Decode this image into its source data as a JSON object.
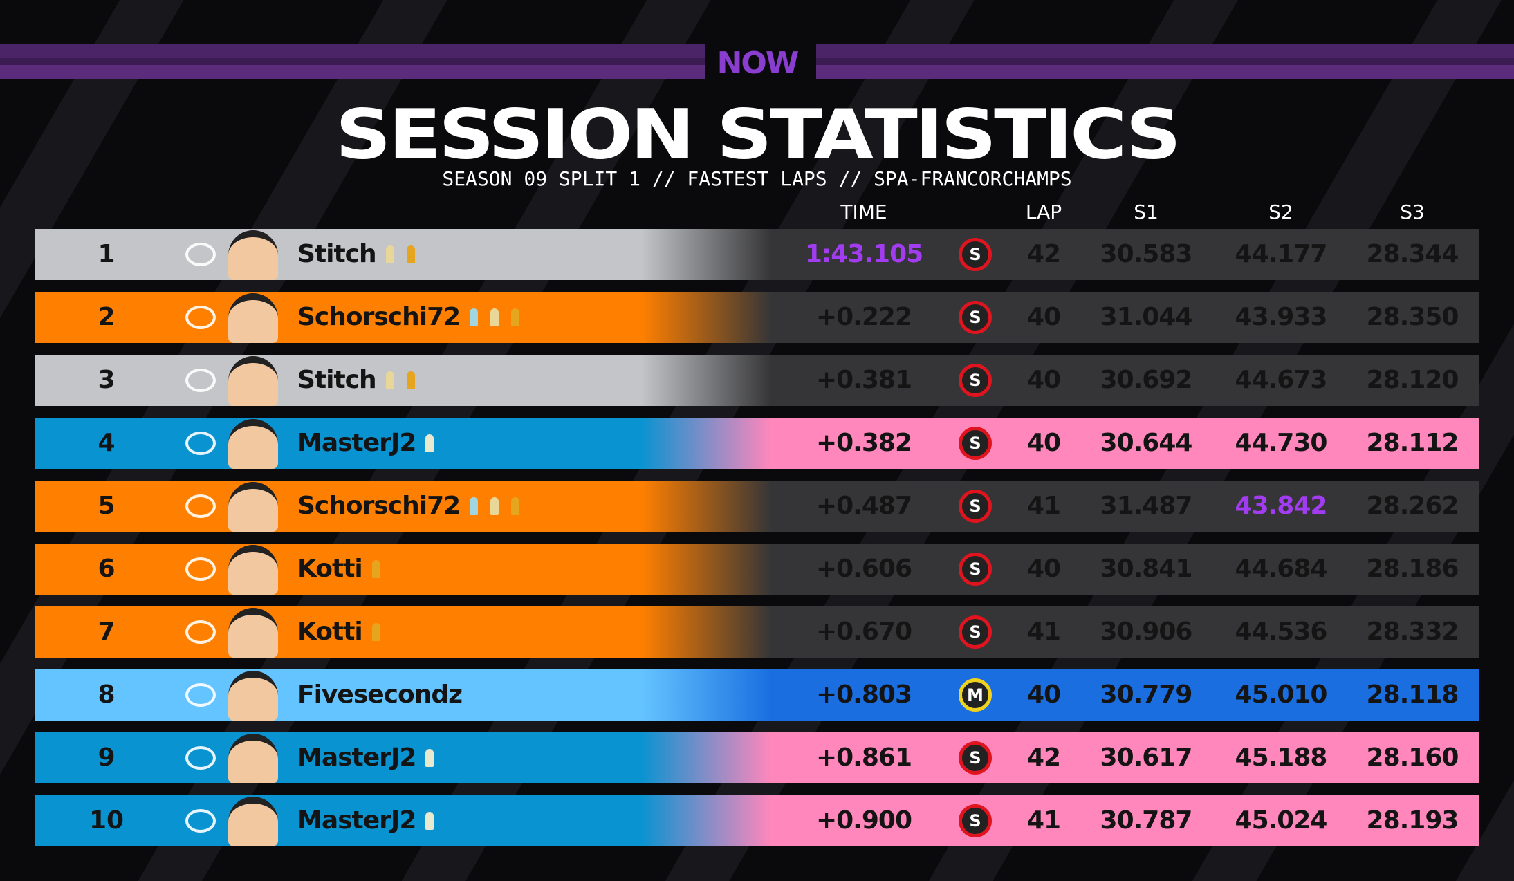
{
  "header": {
    "logo": "NOW",
    "title": "SESSION STATISTICS",
    "subtitle": "SEASON 09 SPLIT 1 // FASTEST LAPS // SPA-FRANCORCHAMPS"
  },
  "table": {
    "columns": [
      "TIME",
      "LAP",
      "S1",
      "S2",
      "S3"
    ],
    "highlight_color": "#a23cf0",
    "rows": [
      {
        "pos": "1",
        "driver": "Stitch",
        "time": "1:43.105",
        "tyre": "S",
        "lap": "42",
        "s1": "30.583",
        "s2": "44.177",
        "s3": "28.344",
        "colors": [
          "#c3c5c8",
          "#353537"
        ],
        "tyre_color": "#e0141e",
        "trophies": [
          "#e9d79a",
          "#e6a51e"
        ],
        "highlight": "time"
      },
      {
        "pos": "2",
        "driver": "Schorschi72",
        "time": "+0.222",
        "tyre": "S",
        "lap": "40",
        "s1": "31.044",
        "s2": "43.933",
        "s3": "28.350",
        "colors": [
          "#ff8000",
          "#353537"
        ],
        "tyre_color": "#e0141e",
        "trophies": [
          "#9fd6e0",
          "#e9d79a",
          "#e6a51e"
        ]
      },
      {
        "pos": "3",
        "driver": "Stitch",
        "time": "+0.381",
        "tyre": "S",
        "lap": "40",
        "s1": "30.692",
        "s2": "44.673",
        "s3": "28.120",
        "colors": [
          "#c3c5c8",
          "#353537"
        ],
        "tyre_color": "#e0141e",
        "trophies": [
          "#e9d79a",
          "#e6a51e"
        ]
      },
      {
        "pos": "4",
        "driver": "MasterJ2",
        "time": "+0.382",
        "tyre": "S",
        "lap": "40",
        "s1": "30.644",
        "s2": "44.730",
        "s3": "28.112",
        "colors": [
          "#0a93d1",
          "#ff87bc"
        ],
        "tyre_color": "#e0141e",
        "trophies": [
          "#e9e9d0"
        ]
      },
      {
        "pos": "5",
        "driver": "Schorschi72",
        "time": "+0.487",
        "tyre": "S",
        "lap": "41",
        "s1": "31.487",
        "s2": "43.842",
        "s3": "28.262",
        "colors": [
          "#ff8000",
          "#353537"
        ],
        "tyre_color": "#e0141e",
        "trophies": [
          "#9fd6e0",
          "#e9d79a",
          "#e6a51e"
        ],
        "highlight": "s2"
      },
      {
        "pos": "6",
        "driver": "Kotti",
        "time": "+0.606",
        "tyre": "S",
        "lap": "40",
        "s1": "30.841",
        "s2": "44.684",
        "s3": "28.186",
        "colors": [
          "#ff8000",
          "#353537"
        ],
        "tyre_color": "#e0141e",
        "trophies": [
          "#e6a51e"
        ]
      },
      {
        "pos": "7",
        "driver": "Kotti",
        "time": "+0.670",
        "tyre": "S",
        "lap": "41",
        "s1": "30.906",
        "s2": "44.536",
        "s3": "28.332",
        "colors": [
          "#ff8000",
          "#353537"
        ],
        "tyre_color": "#e0141e",
        "trophies": [
          "#e6a51e"
        ]
      },
      {
        "pos": "8",
        "driver": "Fivesecondz",
        "time": "+0.803",
        "tyre": "M",
        "lap": "40",
        "s1": "30.779",
        "s2": "45.010",
        "s3": "28.118",
        "colors": [
          "#64c4ff",
          "#1a6ee0"
        ],
        "tyre_color": "#f0d21e",
        "trophies": []
      },
      {
        "pos": "9",
        "driver": "MasterJ2",
        "time": "+0.861",
        "tyre": "S",
        "lap": "42",
        "s1": "30.617",
        "s2": "45.188",
        "s3": "28.160",
        "colors": [
          "#0a93d1",
          "#ff87bc"
        ],
        "tyre_color": "#e0141e",
        "trophies": [
          "#e9e9d0"
        ]
      },
      {
        "pos": "10",
        "driver": "MasterJ2",
        "time": "+0.900",
        "tyre": "S",
        "lap": "41",
        "s1": "30.787",
        "s2": "45.024",
        "s3": "28.193",
        "colors": [
          "#0a93d1",
          "#ff87bc"
        ],
        "tyre_color": "#e0141e",
        "trophies": [
          "#e9e9d0"
        ]
      }
    ]
  }
}
